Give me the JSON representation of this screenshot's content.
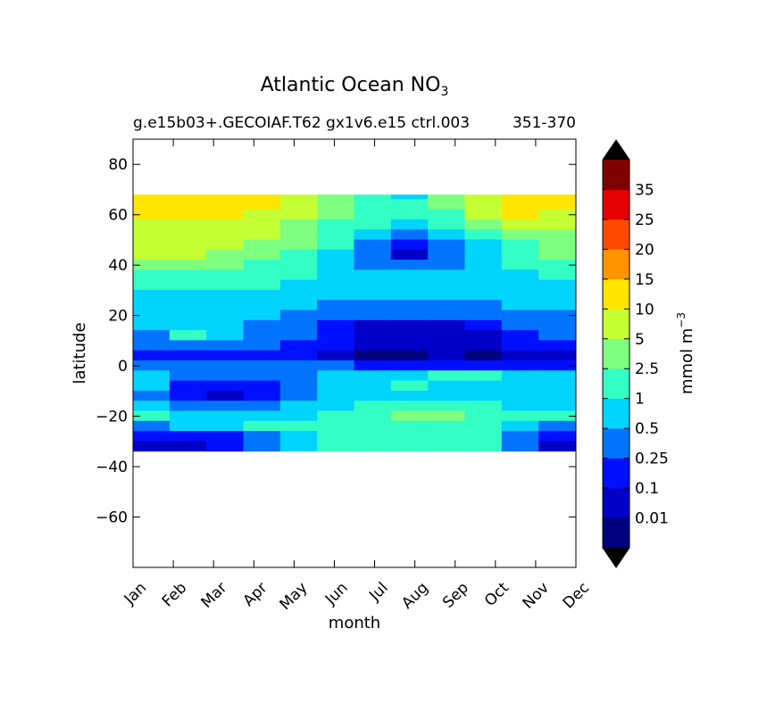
{
  "chart_data": {
    "type": "heatmap",
    "title": "Atlantic Ocean NO",
    "title_subscript": "3",
    "subtitle_left": "g.e15b03+.GECOIAF.T62 gx1v6.e15 ctrl.003",
    "subtitle_right": "351-370",
    "xlabel": "month",
    "ylabel": "latitude",
    "x_categories": [
      "Jan",
      "Feb",
      "Mar",
      "Apr",
      "May",
      "Jun",
      "Jul",
      "Aug",
      "Sep",
      "Oct",
      "Nov",
      "Dec"
    ],
    "ylim": [
      -80,
      90
    ],
    "y_ticks": [
      80,
      60,
      40,
      20,
      0,
      -20,
      -40,
      -60
    ],
    "y_tick_labels": [
      "80",
      "60",
      "40",
      "20",
      "0",
      "−20",
      "−40",
      "−60"
    ],
    "data_lat_range": [
      -34,
      68
    ],
    "colorbar": {
      "label": "mmol m",
      "label_superscript": "−3",
      "levels": [
        "0.01",
        "0.1",
        "0.25",
        "0.5",
        "1",
        "2.5",
        "5",
        "10",
        "15",
        "20",
        "25",
        "35"
      ],
      "colors": [
        "#00007f",
        "#0000c8",
        "#0010ff",
        "#0074ff",
        "#00d4ff",
        "#33ffc4",
        "#7fff7f",
        "#c4ff33",
        "#ffe500",
        "#ff9400",
        "#ff4a00",
        "#e40000",
        "#7f0000"
      ],
      "extend": "both",
      "extend_color": "#000000"
    },
    "field": {
      "lat_rows": [
        68,
        64,
        60,
        56,
        52,
        48,
        44,
        40,
        36,
        32,
        28,
        24,
        20,
        16,
        12,
        8,
        4,
        0,
        -4,
        -8,
        -12,
        -16,
        -20,
        -24,
        -28,
        -32
      ],
      "class_rows": [
        [
          8,
          8,
          8,
          8,
          7,
          6,
          5,
          4,
          6,
          7,
          8,
          8
        ],
        [
          8,
          8,
          8,
          8,
          7,
          6,
          5,
          5,
          6,
          7,
          8,
          8
        ],
        [
          8,
          8,
          8,
          7,
          7,
          6,
          5,
          5,
          5,
          7,
          8,
          7
        ],
        [
          7,
          7,
          7,
          7,
          6,
          5,
          5,
          4,
          5,
          6,
          7,
          7
        ],
        [
          7,
          7,
          7,
          7,
          6,
          5,
          4,
          3,
          4,
          5,
          6,
          6
        ],
        [
          7,
          7,
          7,
          6,
          6,
          5,
          3,
          2,
          3,
          4,
          5,
          6
        ],
        [
          7,
          7,
          6,
          6,
          5,
          4,
          3,
          1,
          3,
          4,
          5,
          6
        ],
        [
          6,
          6,
          6,
          5,
          5,
          4,
          3,
          3,
          3,
          4,
          5,
          5
        ],
        [
          5,
          5,
          5,
          5,
          5,
          4,
          4,
          4,
          4,
          4,
          4,
          5
        ],
        [
          5,
          5,
          5,
          5,
          4,
          4,
          4,
          4,
          4,
          4,
          4,
          4
        ],
        [
          4,
          4,
          4,
          4,
          4,
          4,
          4,
          4,
          4,
          4,
          4,
          4
        ],
        [
          4,
          4,
          4,
          4,
          4,
          3,
          3,
          3,
          3,
          3,
          4,
          4
        ],
        [
          4,
          4,
          4,
          4,
          3,
          3,
          3,
          3,
          3,
          3,
          3,
          3
        ],
        [
          4,
          4,
          4,
          3,
          3,
          2,
          1,
          1,
          1,
          2,
          3,
          3
        ],
        [
          3,
          5,
          4,
          3,
          3,
          2,
          1,
          1,
          1,
          1,
          2,
          3
        ],
        [
          3,
          3,
          3,
          3,
          2,
          2,
          1,
          1,
          1,
          1,
          2,
          2
        ],
        [
          2,
          2,
          2,
          2,
          2,
          1,
          0,
          0,
          1,
          0,
          1,
          1
        ],
        [
          3,
          3,
          3,
          3,
          3,
          3,
          2,
          2,
          2,
          2,
          2,
          2
        ],
        [
          4,
          3,
          3,
          3,
          3,
          4,
          4,
          4,
          5,
          5,
          4,
          4
        ],
        [
          4,
          2,
          2,
          2,
          3,
          4,
          4,
          5,
          4,
          4,
          4,
          4
        ],
        [
          3,
          2,
          1,
          2,
          3,
          4,
          4,
          4,
          4,
          4,
          4,
          4
        ],
        [
          4,
          3,
          3,
          3,
          4,
          4,
          5,
          5,
          5,
          5,
          4,
          4
        ],
        [
          5,
          4,
          4,
          4,
          4,
          5,
          5,
          6,
          6,
          5,
          5,
          5
        ],
        [
          3,
          4,
          4,
          5,
          5,
          5,
          5,
          5,
          5,
          5,
          4,
          3
        ],
        [
          2,
          2,
          2,
          3,
          4,
          5,
          5,
          5,
          5,
          5,
          3,
          2
        ],
        [
          1,
          1,
          2,
          3,
          4,
          5,
          5,
          5,
          5,
          5,
          3,
          1
        ]
      ]
    }
  }
}
